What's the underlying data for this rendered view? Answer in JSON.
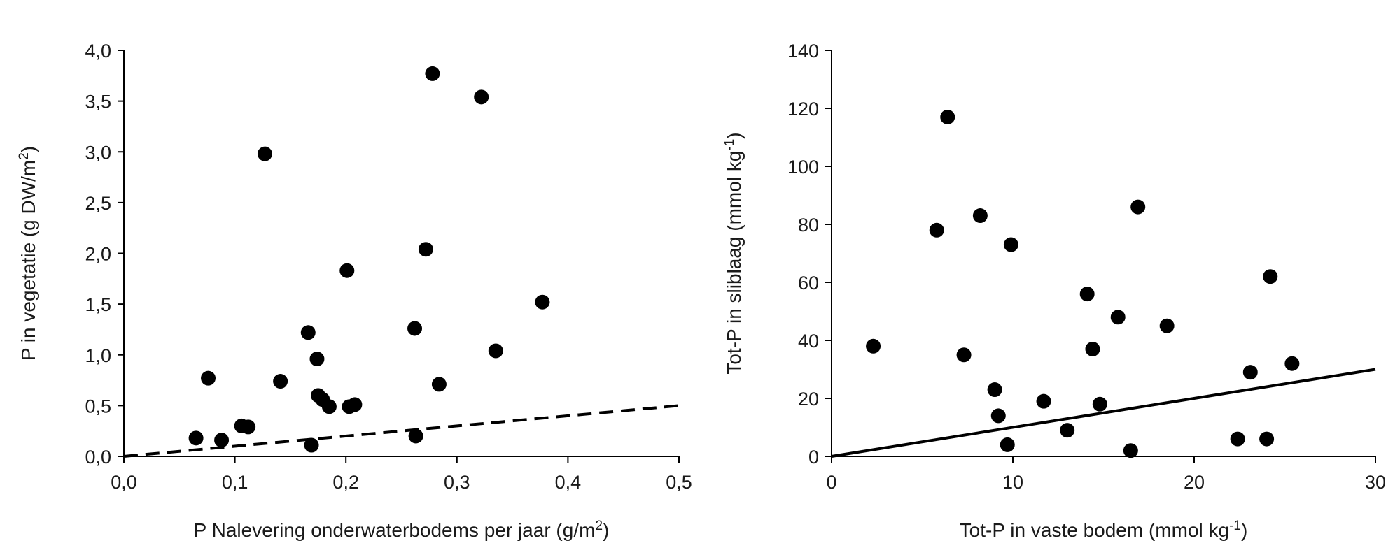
{
  "chart_data": [
    {
      "type": "scatter",
      "xlabel": "P Nalevering onderwaterbodems per jaar (g/m2)",
      "xlabel_parts": {
        "main": "P Nalevering onderwaterbodems per jaar (g/m",
        "sup": "2",
        "tail": ")"
      },
      "ylabel": "P in vegetatie (g DW/m2)",
      "ylabel_parts": {
        "main": "P in vegetatie (g DW/m",
        "sup": "2",
        "tail": ")"
      },
      "xlim": [
        0,
        0.5
      ],
      "ylim": [
        0,
        4.0
      ],
      "x_ticks": [
        "0,0",
        "0,1",
        "0,2",
        "0,3",
        "0,4",
        "0,5"
      ],
      "x_tick_values": [
        0,
        0.1,
        0.2,
        0.3,
        0.4,
        0.5
      ],
      "y_ticks": [
        "0,0",
        "0,5",
        "1,0",
        "1,5",
        "2,0",
        "2,5",
        "3,0",
        "3,5",
        "4,0"
      ],
      "y_tick_values": [
        0,
        0.5,
        1.0,
        1.5,
        2.0,
        2.5,
        3.0,
        3.5,
        4.0
      ],
      "points": [
        {
          "x": 0.065,
          "y": 0.18
        },
        {
          "x": 0.076,
          "y": 0.77
        },
        {
          "x": 0.088,
          "y": 0.16
        },
        {
          "x": 0.106,
          "y": 0.3
        },
        {
          "x": 0.112,
          "y": 0.29
        },
        {
          "x": 0.127,
          "y": 2.98
        },
        {
          "x": 0.141,
          "y": 0.74
        },
        {
          "x": 0.166,
          "y": 1.22
        },
        {
          "x": 0.169,
          "y": 0.11
        },
        {
          "x": 0.174,
          "y": 0.96
        },
        {
          "x": 0.175,
          "y": 0.6
        },
        {
          "x": 0.179,
          "y": 0.56
        },
        {
          "x": 0.185,
          "y": 0.49
        },
        {
          "x": 0.201,
          "y": 1.83
        },
        {
          "x": 0.203,
          "y": 0.49
        },
        {
          "x": 0.208,
          "y": 0.51
        },
        {
          "x": 0.262,
          "y": 1.26
        },
        {
          "x": 0.263,
          "y": 0.2
        },
        {
          "x": 0.272,
          "y": 2.04
        },
        {
          "x": 0.278,
          "y": 3.77
        },
        {
          "x": 0.284,
          "y": 0.71
        },
        {
          "x": 0.322,
          "y": 3.54
        },
        {
          "x": 0.335,
          "y": 1.04
        },
        {
          "x": 0.377,
          "y": 1.52
        }
      ],
      "reference_line": {
        "style": "dashed",
        "x": [
          0,
          0.5
        ],
        "y": [
          0,
          0.5
        ]
      }
    },
    {
      "type": "scatter",
      "xlabel": "Tot-P in vaste bodem (mmol kg-1)",
      "xlabel_parts": {
        "main": "Tot-P in vaste bodem (mmol kg",
        "sup": "-1",
        "tail": ")"
      },
      "ylabel": "Tot-P in sliblaag (mmol kg-1)",
      "ylabel_parts": {
        "main": "Tot-P in sliblaag (mmol kg",
        "sup": "-1",
        "tail": ")"
      },
      "xlim": [
        0,
        30
      ],
      "ylim": [
        0,
        140
      ],
      "x_ticks": [
        "0",
        "10",
        "20",
        "30"
      ],
      "x_tick_values": [
        0,
        10,
        20,
        30
      ],
      "y_ticks": [
        "0",
        "20",
        "40",
        "60",
        "80",
        "100",
        "120",
        "140"
      ],
      "y_tick_values": [
        0,
        20,
        40,
        60,
        80,
        100,
        120,
        140
      ],
      "points": [
        {
          "x": 2.3,
          "y": 38
        },
        {
          "x": 5.8,
          "y": 78
        },
        {
          "x": 6.4,
          "y": 117
        },
        {
          "x": 7.3,
          "y": 35
        },
        {
          "x": 8.2,
          "y": 83
        },
        {
          "x": 9.0,
          "y": 23
        },
        {
          "x": 9.2,
          "y": 14
        },
        {
          "x": 9.7,
          "y": 4
        },
        {
          "x": 9.9,
          "y": 73
        },
        {
          "x": 11.7,
          "y": 19
        },
        {
          "x": 13.0,
          "y": 9
        },
        {
          "x": 14.1,
          "y": 56
        },
        {
          "x": 14.4,
          "y": 37
        },
        {
          "x": 14.8,
          "y": 18
        },
        {
          "x": 15.8,
          "y": 48
        },
        {
          "x": 16.5,
          "y": 2
        },
        {
          "x": 16.9,
          "y": 86
        },
        {
          "x": 18.5,
          "y": 45
        },
        {
          "x": 22.4,
          "y": 6
        },
        {
          "x": 23.1,
          "y": 29
        },
        {
          "x": 24.0,
          "y": 6
        },
        {
          "x": 24.2,
          "y": 62
        },
        {
          "x": 25.4,
          "y": 32
        }
      ],
      "reference_line": {
        "style": "solid",
        "x": [
          0,
          30
        ],
        "y": [
          0,
          30
        ]
      }
    }
  ]
}
